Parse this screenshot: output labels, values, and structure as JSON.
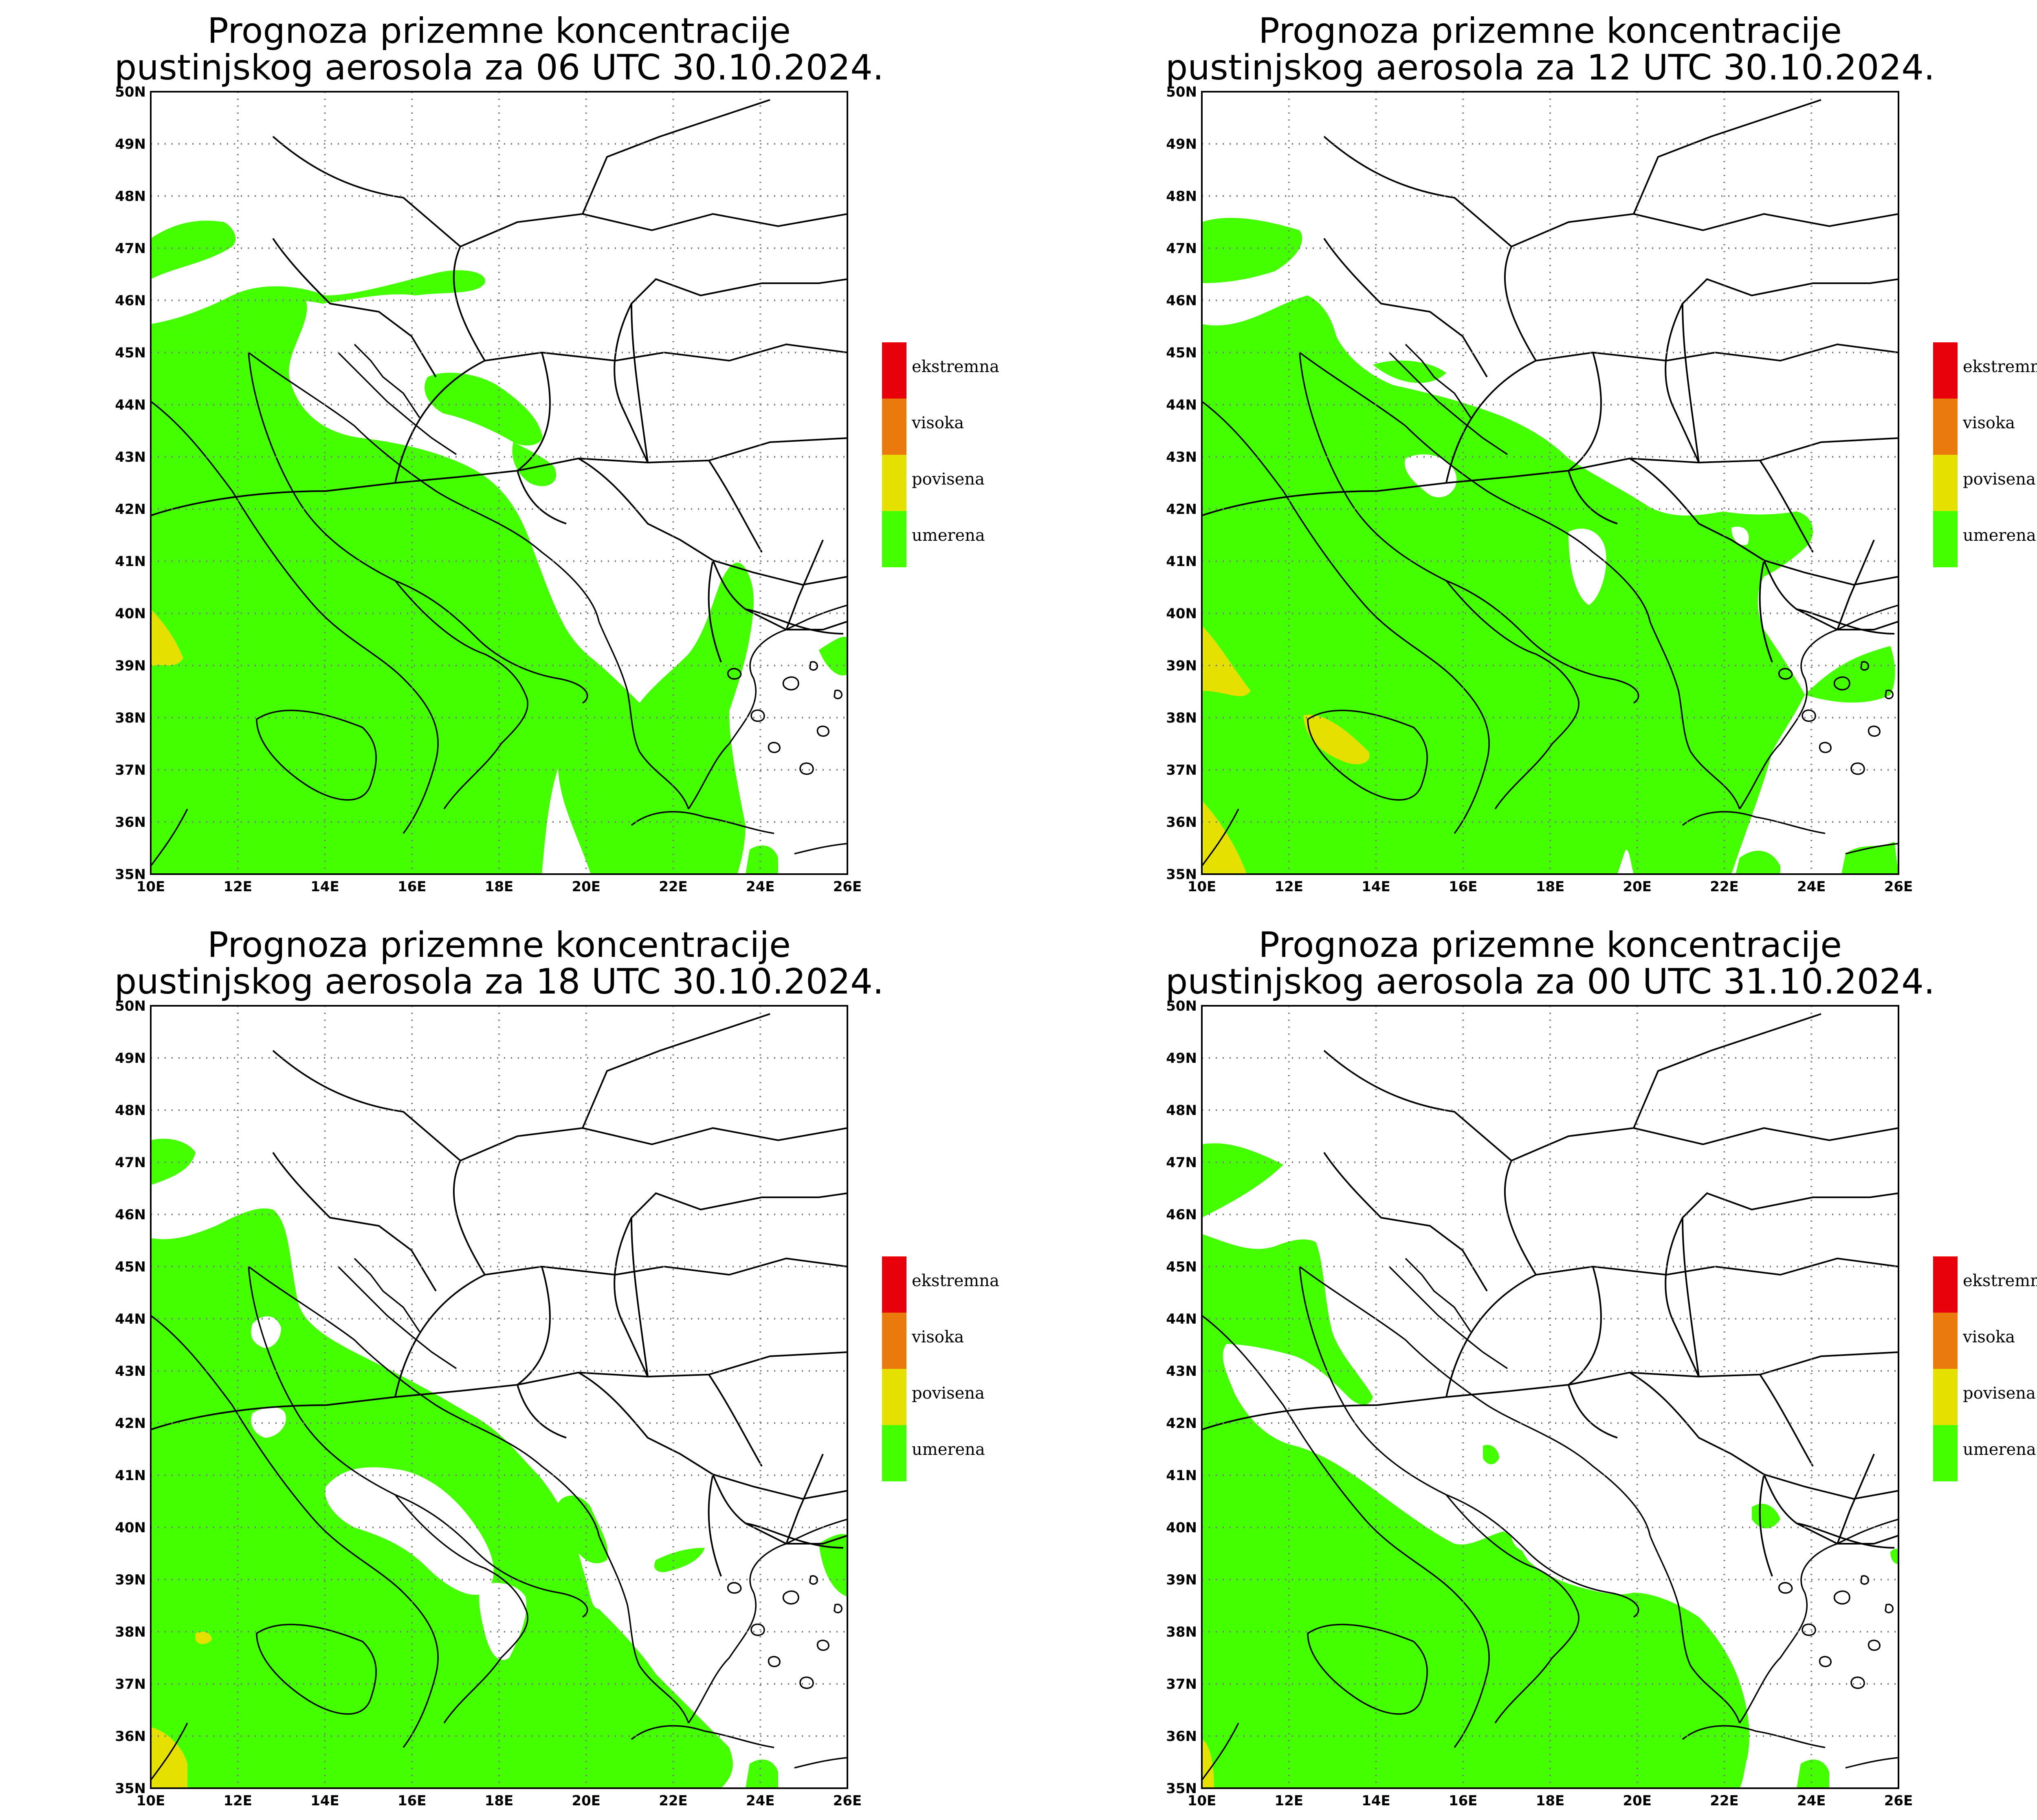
{
  "panels": [
    {
      "title_line1": "Prognoza prizemne koncentracije",
      "title_line2": "pustinjskog aerosola za 06 UTC 30.10.2024."
    },
    {
      "title_line1": "Prognoza prizemne koncentracije",
      "title_line2": "pustinjskog aerosola za 12 UTC 30.10.2024."
    },
    {
      "title_line1": "Prognoza prizemne koncentracije",
      "title_line2": "pustinjskog aerosola za 18 UTC 30.10.2024."
    },
    {
      "title_line1": "Prognoza prizemne koncentracije",
      "title_line2": "pustinjskog aerosola za 00 UTC 31.10.2024."
    }
  ],
  "axes": {
    "lat_labels": [
      "50N",
      "49N",
      "48N",
      "47N",
      "46N",
      "45N",
      "44N",
      "43N",
      "42N",
      "41N",
      "40N",
      "39N",
      "38N",
      "37N",
      "36N",
      "35N"
    ],
    "lon_labels": [
      "10E",
      "12E",
      "14E",
      "16E",
      "18E",
      "20E",
      "22E",
      "24E",
      "26E"
    ]
  },
  "legend": [
    {
      "label": "ekstremna",
      "color": "#e8000b"
    },
    {
      "label": "visoka",
      "color": "#ea7a0c"
    },
    {
      "label": "povisena",
      "color": "#e5e000"
    },
    {
      "label": "umerena",
      "color": "#44ff00"
    }
  ],
  "colors": {
    "moderate": "#44ff00",
    "elevated": "#e5e000",
    "background": "#ffffff"
  }
}
